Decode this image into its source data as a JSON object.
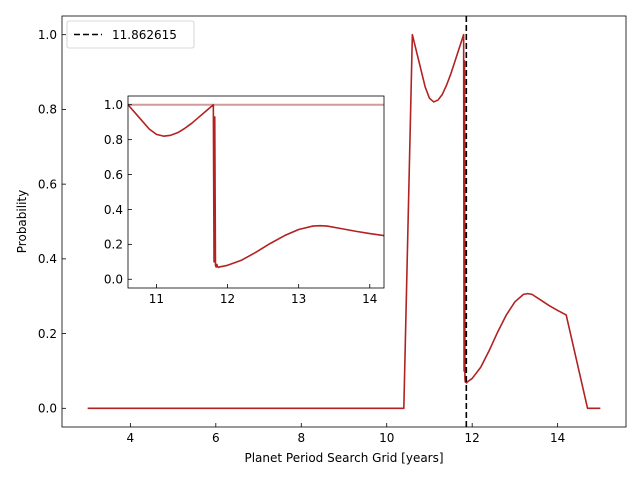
{
  "chart_data": {
    "type": "line",
    "xlabel": "Planet Period Search Grid [years]",
    "ylabel": "Probability",
    "xlim": [
      2.4,
      15.6
    ],
    "ylim": [
      -0.05,
      1.05
    ],
    "xticks": [
      4,
      6,
      8,
      10,
      12,
      14
    ],
    "yticks": [
      0.0,
      0.2,
      0.4,
      0.6,
      0.8,
      1.0
    ],
    "line_color": "#b22222",
    "legend": {
      "placement": "upper-left",
      "entries": [
        {
          "label": "11.862615",
          "style": "dashed",
          "color": "#000000"
        }
      ]
    },
    "vline": {
      "x": 11.862615,
      "color": "#000000",
      "style": "dashed"
    },
    "series": [
      {
        "x": [
          3.0,
          10.4,
          10.6,
          10.75,
          10.9,
          11.0,
          11.1,
          11.2,
          11.3,
          11.4,
          11.5,
          11.6,
          11.7,
          11.8,
          11.81,
          11.82,
          11.83,
          11.84,
          11.85,
          11.86,
          11.87,
          11.88,
          12.0,
          12.2,
          12.4,
          12.6,
          12.8,
          13.0,
          13.2,
          13.3,
          13.4,
          13.6,
          13.8,
          14.0,
          14.2,
          14.3,
          14.5,
          14.7,
          15.0
        ],
        "y": [
          0.0,
          0.0,
          1.0,
          0.93,
          0.86,
          0.83,
          0.82,
          0.825,
          0.84,
          0.865,
          0.895,
          0.93,
          0.965,
          1.0,
          0.1,
          0.93,
          0.08,
          0.07,
          0.085,
          0.072,
          0.068,
          0.07,
          0.08,
          0.11,
          0.155,
          0.205,
          0.25,
          0.285,
          0.305,
          0.307,
          0.305,
          0.29,
          0.275,
          0.262,
          0.25,
          0.2,
          0.1,
          0.0,
          0.0
        ]
      }
    ],
    "inset": {
      "xlim": [
        10.6,
        14.2
      ],
      "ylim": [
        -0.05,
        1.05
      ],
      "xticks": [
        11,
        12,
        13,
        14
      ],
      "yticks": [
        0.0,
        0.2,
        0.4,
        0.6,
        0.8,
        1.0
      ],
      "hline": {
        "y": 1.0,
        "color": "#d49a9a"
      },
      "series": [
        {
          "x": [
            10.6,
            10.75,
            10.9,
            11.0,
            11.1,
            11.2,
            11.3,
            11.4,
            11.5,
            11.6,
            11.7,
            11.8,
            11.81,
            11.82,
            11.83,
            11.84,
            11.85,
            11.86,
            11.87,
            11.88,
            12.0,
            12.2,
            12.4,
            12.6,
            12.8,
            13.0,
            13.2,
            13.3,
            13.4,
            13.6,
            13.8,
            14.0,
            14.2
          ],
          "y": [
            1.0,
            0.93,
            0.86,
            0.83,
            0.82,
            0.825,
            0.84,
            0.865,
            0.895,
            0.93,
            0.965,
            1.0,
            0.1,
            0.93,
            0.08,
            0.07,
            0.085,
            0.072,
            0.068,
            0.07,
            0.08,
            0.11,
            0.155,
            0.205,
            0.25,
            0.285,
            0.305,
            0.307,
            0.305,
            0.29,
            0.275,
            0.262,
            0.25
          ]
        }
      ]
    }
  }
}
